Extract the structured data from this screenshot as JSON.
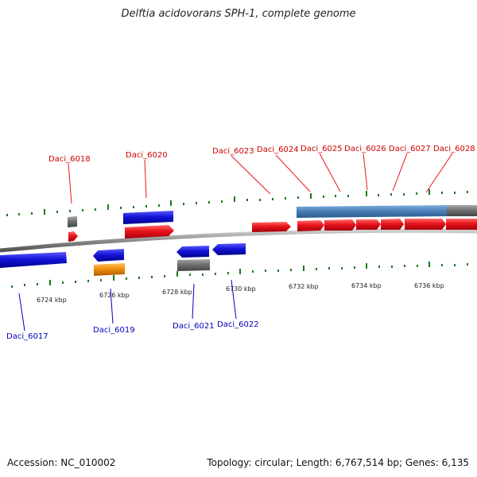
{
  "title": "Delftia acidovorans SPH-1, complete genome",
  "footer": {
    "accession": "Accession: NC_010002",
    "summary": "Topology: circular; Length: 6,767,514 bp; Genes: 6,135"
  },
  "colors": {
    "forward": "#e8141c",
    "reverse": "#1414d8",
    "grey_gene": "#707070",
    "orange_gene": "#f0900c",
    "steel_gene": "#4a7fb8",
    "forward_label": "#cc0000",
    "reverse_label": "#0000bb",
    "tick": "#1a7a1a",
    "backbone": "#8c8c8c"
  },
  "scale_labels": [
    "6724 kbp",
    "6726 kbp",
    "6728 kbp",
    "6730 kbp",
    "6732 kbp",
    "6734 kbp",
    "6736 kbp"
  ],
  "forward_gene_labels": [
    "Daci_6018",
    "Daci_6020",
    "Daci_6023",
    "Daci_6024",
    "Daci_6025",
    "Daci_6026",
    "Daci_6027",
    "Daci_6028"
  ],
  "reverse_gene_labels": [
    "Daci_6017",
    "Daci_6019",
    "Daci_6021",
    "Daci_6022"
  ]
}
